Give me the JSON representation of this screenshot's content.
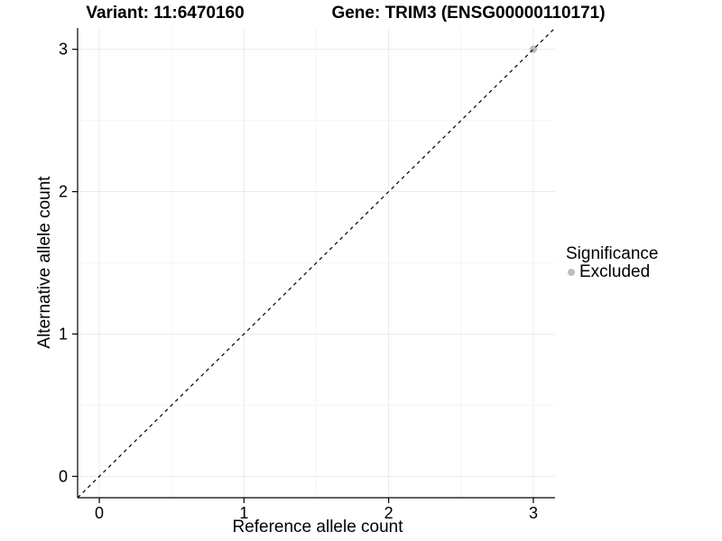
{
  "chart_data": {
    "type": "scatter",
    "titles": {
      "left": "Variant: 11:6470160",
      "right": "Gene: TRIM3 (ENSG00000110171)"
    },
    "xlabel": "Reference allele count",
    "ylabel": "Alternative allele count",
    "xlim": [
      -0.15,
      3.15
    ],
    "ylim": [
      -0.15,
      3.15
    ],
    "x_ticks": [
      0,
      1,
      2,
      3
    ],
    "y_ticks": [
      0,
      1,
      2,
      3
    ],
    "minor_x_ticks": [
      0.5,
      1.5,
      2.5
    ],
    "minor_y_ticks": [
      0.5,
      1.5,
      2.5
    ],
    "grid": true,
    "identity_line": {
      "style": "dashed",
      "color": "#000000",
      "from": [
        -0.15,
        -0.15
      ],
      "to": [
        3.15,
        3.15
      ]
    },
    "series": [
      {
        "name": "Excluded",
        "color": "#bdbdbd",
        "marker_radius": 4.2,
        "points": [
          [
            3,
            3
          ]
        ]
      }
    ],
    "legend": {
      "title": "Significance",
      "position": "right",
      "items": [
        {
          "label": "Excluded",
          "color": "#bdbdbd"
        }
      ]
    },
    "colors": {
      "grid_major": "#ebebeb",
      "grid_minor": "#f5f5f5",
      "axis": "#000000",
      "text": "#000000",
      "background": "#ffffff"
    }
  }
}
